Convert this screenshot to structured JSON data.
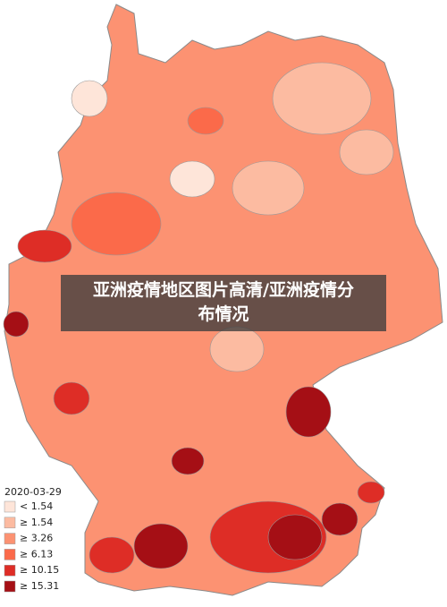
{
  "caption": "亚洲疫情地区图片高清/亚洲疫情分布情况",
  "legend": {
    "title": "2020-03-29",
    "items": [
      {
        "label": "< 1.54",
        "color": "#fee5d9"
      },
      {
        "label": "≥ 1.54",
        "color": "#fcbba1"
      },
      {
        "label": "≥ 3.26",
        "color": "#fc9272"
      },
      {
        "label": "≥ 6.13",
        "color": "#fb6a4a"
      },
      {
        "label": "≥ 10.15",
        "color": "#de2d26"
      },
      {
        "label": "≥ 15.31",
        "color": "#a50f15"
      }
    ]
  }
}
